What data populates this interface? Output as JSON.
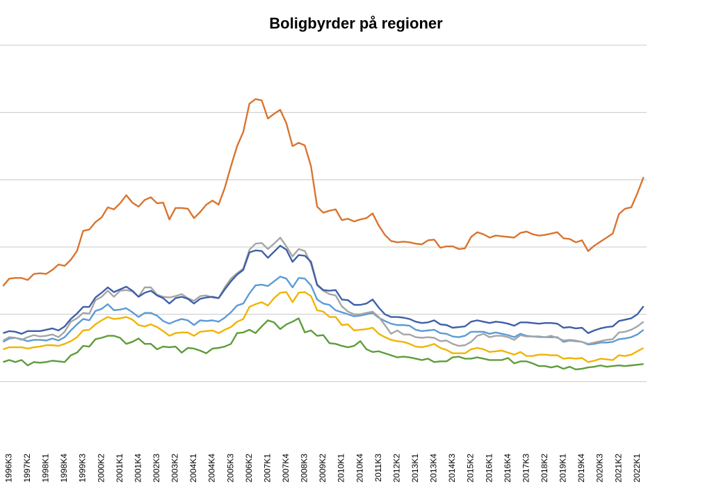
{
  "chart_data": {
    "type": "line",
    "title": "Boligbyrder  på regioner",
    "categories": [
      null,
      "1996K3",
      null,
      null,
      "1997K2",
      null,
      null,
      "1998K1",
      null,
      null,
      "1998K4",
      null,
      null,
      "1999K3",
      null,
      null,
      "2000K2",
      null,
      null,
      "2001K1",
      null,
      null,
      "2001K4",
      null,
      null,
      "2002K3",
      null,
      null,
      "2003K2",
      null,
      null,
      "2004K1",
      null,
      null,
      "2004K4",
      null,
      null,
      "2005K3",
      null,
      null,
      "2006K2",
      null,
      null,
      "2007K1",
      null,
      null,
      "2007K4",
      null,
      null,
      "2008K3",
      null,
      null,
      "2009K2",
      null,
      null,
      "2010K1",
      null,
      null,
      "2010K4",
      null,
      null,
      "2011K3",
      null,
      null,
      "2012K2",
      null,
      null,
      "2013K1",
      null,
      null,
      "2013K4",
      null,
      null,
      "2014K3",
      null,
      null,
      "2015K2",
      null,
      null,
      "2016K1",
      null,
      null,
      "2016K4",
      null,
      null,
      "2017K3",
      null,
      null,
      "2018K2",
      null,
      null,
      "2019K1",
      null,
      null,
      "2019K4",
      null,
      null,
      "2020K3",
      null,
      null,
      "2021K2",
      null,
      null,
      "2022K1",
      null
    ],
    "ylim": [
      0,
      60
    ],
    "yticks": [
      10,
      20,
      30,
      40,
      50,
      60
    ],
    "grid": true,
    "series": [
      {
        "color": "#5e9c3a",
        "values": [
          12.9,
          13.2,
          12.9,
          13.2,
          12.4,
          12.9,
          12.8,
          12.9,
          13.1,
          13.0,
          12.9,
          13.9,
          14.3,
          15.3,
          15.2,
          16.3,
          16.5,
          16.8,
          16.8,
          16.5,
          15.6,
          15.9,
          16.4,
          15.6,
          15.6,
          14.8,
          15.2,
          15.1,
          15.2,
          14.3,
          15.0,
          14.9,
          14.6,
          14.2,
          14.9,
          15.0,
          15.2,
          15.6,
          17.2,
          17.3,
          17.7,
          17.2,
          18.2,
          19.1,
          18.8,
          17.8,
          18.5,
          18.9,
          19.4,
          17.3,
          17.6,
          16.8,
          16.9,
          15.7,
          15.6,
          15.3,
          15.1,
          15.3,
          16.0,
          14.8,
          14.4,
          14.5,
          14.2,
          13.9,
          13.6,
          13.7,
          13.6,
          13.4,
          13.2,
          13.4,
          12.9,
          13.0,
          13.0,
          13.6,
          13.7,
          13.4,
          13.4,
          13.6,
          13.4,
          13.2,
          13.2,
          13.2,
          13.5,
          12.7,
          13.0,
          13.0,
          12.7,
          12.3,
          12.3,
          12.1,
          12.3,
          11.9,
          12.2,
          11.8,
          11.9,
          12.1,
          12.2,
          12.4,
          12.2,
          12.3,
          12.4,
          12.3,
          12.4,
          12.5,
          12.6
        ]
      },
      {
        "color": "#f0b400",
        "values": [
          14.8,
          15.1,
          15.1,
          15.1,
          14.9,
          15.1,
          15.2,
          15.4,
          15.4,
          15.3,
          15.6,
          16.0,
          16.6,
          17.6,
          17.7,
          18.5,
          19.1,
          19.6,
          19.3,
          19.4,
          19.6,
          19.2,
          18.4,
          18.2,
          18.5,
          18.1,
          17.5,
          16.8,
          17.2,
          17.3,
          17.3,
          16.8,
          17.4,
          17.5,
          17.6,
          17.2,
          17.7,
          18.1,
          18.9,
          19.3,
          21.1,
          21.5,
          21.8,
          21.3,
          22.4,
          23.2,
          23.3,
          21.8,
          23.2,
          23.3,
          22.7,
          20.6,
          20.4,
          19.6,
          19.6,
          18.4,
          18.5,
          17.6,
          17.7,
          17.8,
          18.0,
          17.1,
          16.6,
          16.2,
          16.0,
          15.9,
          15.6,
          15.2,
          15.1,
          15.3,
          15.6,
          15.0,
          14.7,
          14.2,
          14.2,
          14.2,
          14.8,
          15.0,
          14.8,
          14.4,
          14.5,
          14.6,
          14.3,
          14.0,
          14.4,
          13.8,
          13.8,
          14.0,
          14.0,
          13.9,
          13.9,
          13.4,
          13.5,
          13.4,
          13.5,
          12.9,
          13.1,
          13.4,
          13.3,
          13.2,
          13.9,
          13.8,
          14.0,
          14.5,
          15.0
        ]
      },
      {
        "color": "#5b9bd5",
        "values": [
          15.9,
          16.4,
          16.5,
          16.3,
          16.0,
          16.2,
          16.2,
          16.1,
          16.4,
          16.1,
          16.6,
          17.6,
          18.5,
          19.3,
          19.1,
          20.5,
          20.8,
          21.5,
          20.6,
          20.7,
          20.9,
          20.3,
          19.6,
          20.2,
          20.2,
          19.8,
          19.0,
          18.6,
          19.0,
          19.3,
          19.1,
          18.4,
          19.1,
          19.0,
          19.1,
          18.9,
          19.5,
          20.3,
          21.3,
          21.6,
          23.1,
          24.3,
          24.4,
          24.2,
          24.9,
          25.6,
          25.3,
          24.0,
          25.4,
          25.3,
          24.3,
          22.2,
          21.6,
          21.4,
          20.6,
          20.3,
          20.0,
          19.7,
          19.8,
          20.0,
          20.2,
          19.5,
          19.0,
          18.6,
          18.4,
          18.4,
          18.3,
          17.7,
          17.5,
          17.6,
          17.7,
          17.2,
          17.1,
          16.7,
          16.6,
          16.8,
          17.4,
          17.4,
          17.4,
          17.1,
          17.3,
          17.1,
          16.9,
          16.6,
          17.1,
          16.8,
          16.7,
          16.7,
          16.6,
          16.6,
          16.6,
          15.9,
          16.1,
          16.0,
          15.9,
          15.5,
          15.6,
          15.8,
          15.8,
          15.9,
          16.3,
          16.4,
          16.6,
          17.0,
          17.7
        ]
      },
      {
        "color": "#a5a5a5",
        "values": [
          16.1,
          16.6,
          16.5,
          16.2,
          16.6,
          16.9,
          16.7,
          16.8,
          17.0,
          16.6,
          17.4,
          18.9,
          19.4,
          20.2,
          20.1,
          22.1,
          22.6,
          23.5,
          22.6,
          23.5,
          23.6,
          23.4,
          22.6,
          24.0,
          24.0,
          22.9,
          22.6,
          22.5,
          22.7,
          23.0,
          22.4,
          22.0,
          22.7,
          22.8,
          22.5,
          22.4,
          24.0,
          25.3,
          26.1,
          26.8,
          29.6,
          30.5,
          30.6,
          29.7,
          30.5,
          31.4,
          30.1,
          28.6,
          29.7,
          29.4,
          27.5,
          24.3,
          23.5,
          23.0,
          22.8,
          21.2,
          20.4,
          20.0,
          20.0,
          20.2,
          20.4,
          19.6,
          18.4,
          17.1,
          17.6,
          17.0,
          17.0,
          16.6,
          16.5,
          16.6,
          16.5,
          16.0,
          16.1,
          15.6,
          15.3,
          15.4,
          15.9,
          16.8,
          17.1,
          16.6,
          16.8,
          16.8,
          16.6,
          16.2,
          16.9,
          16.7,
          16.7,
          16.6,
          16.6,
          16.8,
          16.5,
          16.1,
          16.2,
          16.1,
          15.9,
          15.6,
          15.8,
          16.0,
          16.2,
          16.3,
          17.3,
          17.4,
          17.7,
          18.2,
          18.9
        ]
      },
      {
        "color": "#3f5fa8",
        "values": [
          17.2,
          17.5,
          17.4,
          17.1,
          17.5,
          17.5,
          17.5,
          17.7,
          17.9,
          17.6,
          18.2,
          19.3,
          20.1,
          21.1,
          21.1,
          22.5,
          23.2,
          24.0,
          23.3,
          23.7,
          24.1,
          23.5,
          22.6,
          23.2,
          23.5,
          22.8,
          22.4,
          21.6,
          22.4,
          22.6,
          22.3,
          21.6,
          22.3,
          22.5,
          22.6,
          22.4,
          23.7,
          24.9,
          25.9,
          26.6,
          29.2,
          29.5,
          29.4,
          28.4,
          29.3,
          30.2,
          29.6,
          27.8,
          28.8,
          28.7,
          27.8,
          24.4,
          23.6,
          23.5,
          23.6,
          22.2,
          22.1,
          21.4,
          21.4,
          21.6,
          22.2,
          21.0,
          20.0,
          19.6,
          19.6,
          19.5,
          19.3,
          18.9,
          18.7,
          18.8,
          19.1,
          18.5,
          18.4,
          18.0,
          18.1,
          18.2,
          18.9,
          19.1,
          18.9,
          18.7,
          18.9,
          18.8,
          18.6,
          18.3,
          18.8,
          18.8,
          18.7,
          18.6,
          18.7,
          18.7,
          18.6,
          18.0,
          18.1,
          17.9,
          18.0,
          17.2,
          17.6,
          17.9,
          18.1,
          18.2,
          19.0,
          19.2,
          19.4,
          20.0,
          21.2
        ]
      },
      {
        "color": "#d9742f",
        "values": [
          24.2,
          25.3,
          25.4,
          25.4,
          25.1,
          26.0,
          26.1,
          26.0,
          26.6,
          27.4,
          27.2,
          28.1,
          29.4,
          32.4,
          32.6,
          33.7,
          34.4,
          35.9,
          35.6,
          36.5,
          37.7,
          36.6,
          36.0,
          37.0,
          37.4,
          36.5,
          36.6,
          34.1,
          35.8,
          35.8,
          35.7,
          34.3,
          35.2,
          36.3,
          36.9,
          36.3,
          38.8,
          42.0,
          45.0,
          47.1,
          51.3,
          52.0,
          51.8,
          49.1,
          49.8,
          50.4,
          48.4,
          45.0,
          45.5,
          45.1,
          42.0,
          36.0,
          35.1,
          35.4,
          35.6,
          34.0,
          34.2,
          33.8,
          34.1,
          34.3,
          35.0,
          33.2,
          31.8,
          30.9,
          30.7,
          30.8,
          30.7,
          30.5,
          30.4,
          31.0,
          31.1,
          29.9,
          30.1,
          30.1,
          29.7,
          29.8,
          31.5,
          32.2,
          31.9,
          31.4,
          31.7,
          31.6,
          31.5,
          31.4,
          32.1,
          32.3,
          31.9,
          31.7,
          31.8,
          32.0,
          32.2,
          31.3,
          31.2,
          30.7,
          31.0,
          29.4,
          30.2,
          30.8,
          31.4,
          32.0,
          34.9,
          35.7,
          35.9,
          38.0,
          40.4
        ]
      }
    ]
  }
}
